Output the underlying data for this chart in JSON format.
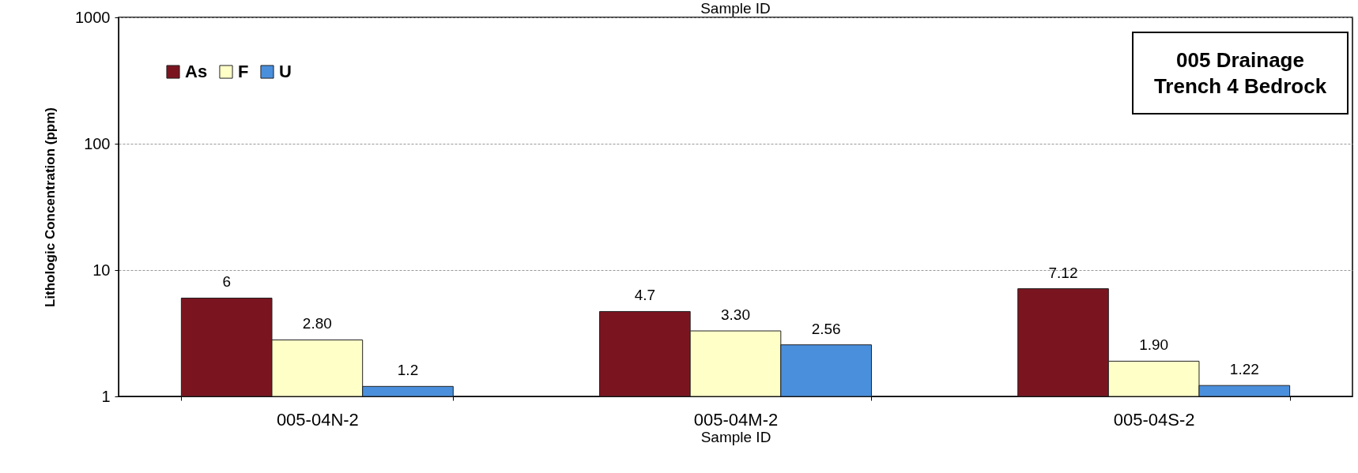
{
  "chart_data": {
    "type": "bar",
    "title": "005 Drainage Trench 4 Bedrock",
    "annotations": [
      "Sample ID"
    ],
    "xlabel": "Sample ID",
    "ylabel": "Lithologic Concentration (ppm)",
    "categories": [
      "005-04N-2",
      "005-04M-2",
      "005-04S-2"
    ],
    "series": [
      {
        "name": "As",
        "color": "#7a1520",
        "values": [
          6,
          4.7,
          7.12
        ],
        "value_labels": [
          "6",
          "4.7",
          "7.12"
        ]
      },
      {
        "name": "F",
        "color": "#ffffc8",
        "values": [
          2.8,
          3.3,
          1.9
        ],
        "value_labels": [
          "2.80",
          "3.30",
          "1.90"
        ]
      },
      {
        "name": "U",
        "color": "#4a8fdc",
        "values": [
          1.2,
          2.56,
          1.22
        ],
        "value_labels": [
          "1.2",
          "2.56",
          "1.22"
        ]
      }
    ],
    "log": true,
    "ylim": [
      1,
      1000
    ],
    "yticks": [
      1,
      10,
      100,
      1000
    ],
    "grid": "y",
    "legend": "top left"
  }
}
